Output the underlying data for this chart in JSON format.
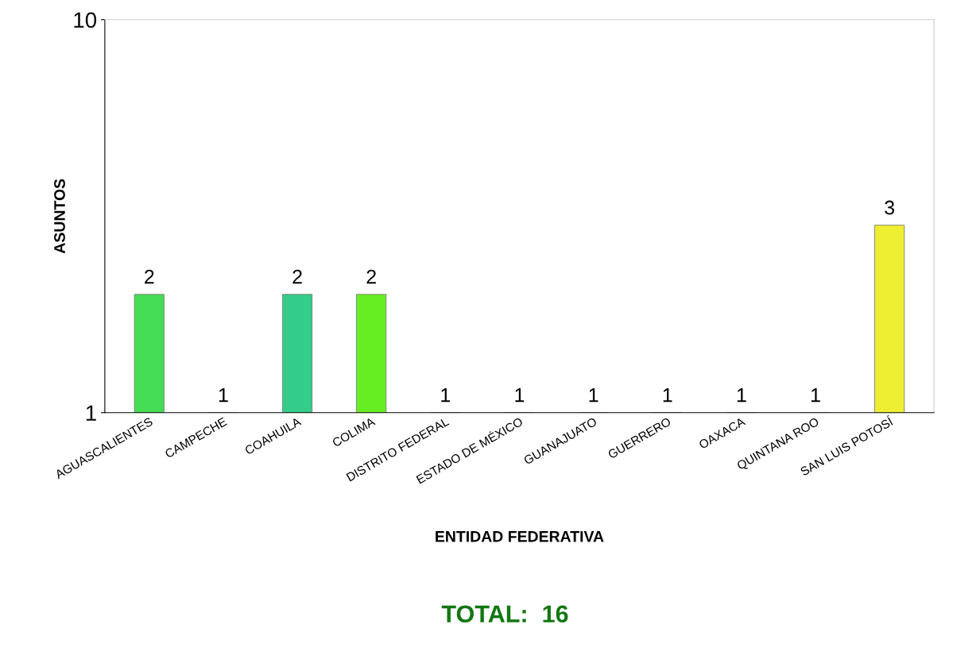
{
  "chart_data": {
    "type": "bar",
    "xlabel": "ENTIDAD FEDERATIVA",
    "ylabel": "ASUNTOS",
    "categories": [
      "AGUASCALIENTES",
      "CAMPECHE",
      "COAHUILA",
      "COLIMA",
      "DISTRITO FEDERAL",
      "ESTADO DE MÉXICO",
      "GUANAJUATO",
      "GUERRERO",
      "OAXACA",
      "QUINTANA ROO",
      "SAN LUIS POTOSÍ"
    ],
    "values": [
      2,
      1,
      2,
      2,
      1,
      1,
      1,
      1,
      1,
      1,
      3
    ],
    "colors": [
      "#44dd55",
      "#88cc22",
      "#33cc88",
      "#66ee22",
      "#556600",
      "#66ee33",
      "#228866",
      "#88cc22",
      "#228866",
      "#556600",
      "#eeee33"
    ],
    "log": true,
    "ylim": [
      1,
      10
    ],
    "yticks": [
      1,
      10
    ],
    "grid": false,
    "data_labels": true,
    "annotations": [
      "TOTAL:  16"
    ]
  }
}
